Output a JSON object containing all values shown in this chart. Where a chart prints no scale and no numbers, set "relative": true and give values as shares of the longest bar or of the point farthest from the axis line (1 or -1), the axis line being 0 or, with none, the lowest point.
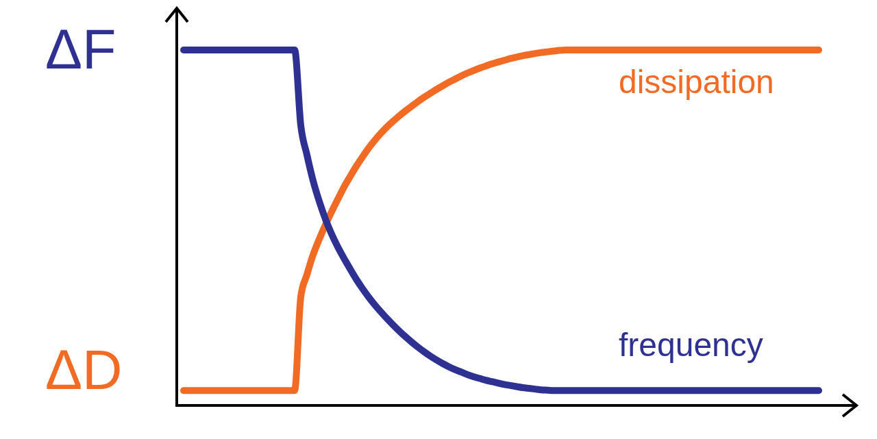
{
  "chart_data": {
    "type": "line",
    "relative": true,
    "categories": [
      null,
      null,
      null,
      null,
      null,
      null,
      null,
      null,
      null,
      null,
      null,
      null,
      null,
      null,
      null,
      null,
      null,
      null,
      null,
      null,
      null,
      null,
      null,
      null,
      null,
      null,
      null,
      null,
      null,
      null,
      null,
      null,
      null,
      null,
      null,
      null,
      null,
      null,
      null,
      null,
      null,
      null,
      null,
      null,
      null,
      null,
      null,
      null,
      null,
      null,
      null,
      null,
      null,
      null,
      null,
      null,
      null,
      null,
      null,
      null,
      null,
      null,
      null,
      null,
      null,
      null,
      null,
      null,
      null,
      null,
      null,
      null,
      null,
      null,
      null,
      null,
      null,
      null,
      null,
      null,
      null,
      null,
      null,
      null,
      null,
      null,
      null,
      null,
      null,
      null,
      null,
      null,
      null,
      null,
      null,
      null,
      null,
      null,
      null,
      null,
      null,
      null,
      null,
      null
    ],
    "series": [
      {
        "name": "dissipation",
        "color": "#f26b25",
        "values": [
          0.042,
          0.042,
          0.042,
          0.042,
          0.042,
          0.042,
          0.042,
          0.042,
          0.042,
          0.042,
          0.042,
          0.042,
          0.042,
          0.042,
          0.042,
          0.042,
          0.042,
          0.042,
          0.042,
          0.306,
          0.368,
          0.424,
          0.468,
          0.508,
          0.545,
          0.58,
          0.614,
          0.644,
          0.673,
          0.699,
          0.724,
          0.746,
          0.766,
          0.784,
          0.8,
          0.815,
          0.829,
          0.842,
          0.855,
          0.867,
          0.878,
          0.889,
          0.899,
          0.909,
          0.918,
          0.927,
          0.935,
          0.942,
          0.949,
          0.955,
          0.961,
          0.966,
          0.971,
          0.976,
          0.98,
          0.984,
          0.987,
          0.99,
          0.993,
          0.995,
          0.997,
          0.999,
          1,
          1,
          1,
          1,
          1,
          1,
          1,
          1,
          1,
          1,
          1,
          1,
          1,
          1,
          1,
          1,
          1,
          1,
          1,
          1,
          1,
          1,
          1,
          1,
          1,
          1,
          1,
          1,
          1,
          1,
          1,
          1,
          1,
          1,
          1,
          1,
          1,
          1,
          1,
          1,
          1,
          1
        ]
      },
      {
        "name": "frequency",
        "color": "#2e3192",
        "values": [
          1,
          1,
          1,
          1,
          1,
          1,
          1,
          1,
          1,
          1,
          1,
          1,
          1,
          1,
          1,
          1,
          1,
          1,
          1,
          0.788,
          0.705,
          0.632,
          0.574,
          0.524,
          0.482,
          0.446,
          0.414,
          0.384,
          0.355,
          0.329,
          0.305,
          0.283,
          0.263,
          0.244,
          0.226,
          0.209,
          0.193,
          0.178,
          0.164,
          0.151,
          0.139,
          0.128,
          0.118,
          0.109,
          0.101,
          0.094,
          0.087,
          0.081,
          0.076,
          0.071,
          0.067,
          0.063,
          0.059,
          0.056,
          0.053,
          0.05,
          0.048,
          0.046,
          0.044,
          0.043,
          0.042,
          0.042,
          0.042,
          0.042,
          0.042,
          0.042,
          0.042,
          0.042,
          0.042,
          0.042,
          0.042,
          0.042,
          0.042,
          0.042,
          0.042,
          0.042,
          0.042,
          0.042,
          0.042,
          0.042,
          0.042,
          0.042,
          0.042,
          0.042,
          0.042,
          0.042,
          0.042,
          0.042,
          0.042,
          0.042,
          0.042,
          0.042,
          0.042,
          0.042,
          0.042,
          0.042,
          0.042,
          0.042,
          0.042,
          0.042,
          0.042,
          0.042,
          0.042,
          0.042
        ]
      }
    ],
    "annotations": [
      "ΔF",
      "ΔD"
    ]
  }
}
